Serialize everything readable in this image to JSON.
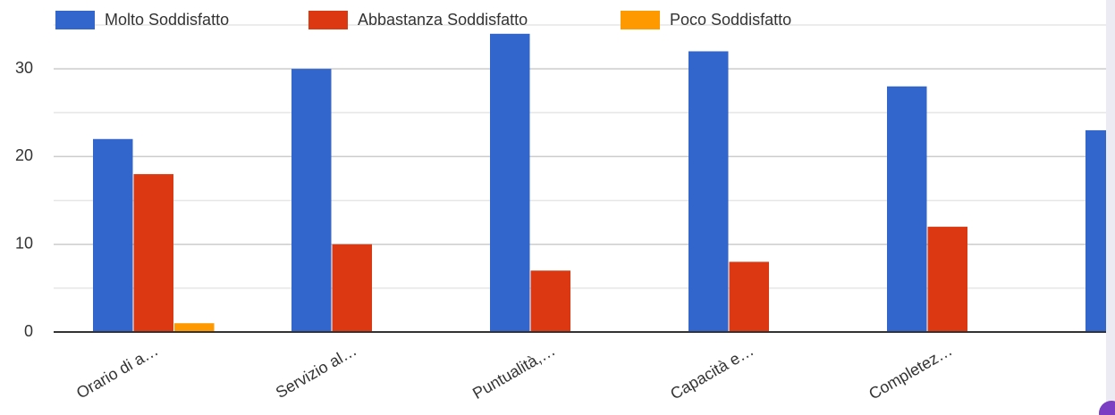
{
  "chart_data": {
    "type": "bar",
    "categories": [
      "Orario di a…",
      "Servizio al…",
      "Puntualità,…",
      "Capacità e…",
      "Completez…",
      null
    ],
    "series": [
      {
        "name": "Molto Soddisfatto",
        "color": "#3366cc",
        "values": [
          22,
          30,
          34,
          32,
          28,
          23
        ]
      },
      {
        "name": "Abbastanza Soddisfatto",
        "color": "#dc3912",
        "values": [
          18,
          10,
          7,
          8,
          12,
          null
        ]
      },
      {
        "name": "Poco Soddisfatto",
        "color": "#ff9900",
        "values": [
          1,
          0,
          0,
          0,
          0,
          null
        ]
      }
    ],
    "ylim": [
      0,
      35
    ],
    "yticks": [
      0,
      10,
      20,
      30
    ],
    "grid": true,
    "legend": "top"
  }
}
